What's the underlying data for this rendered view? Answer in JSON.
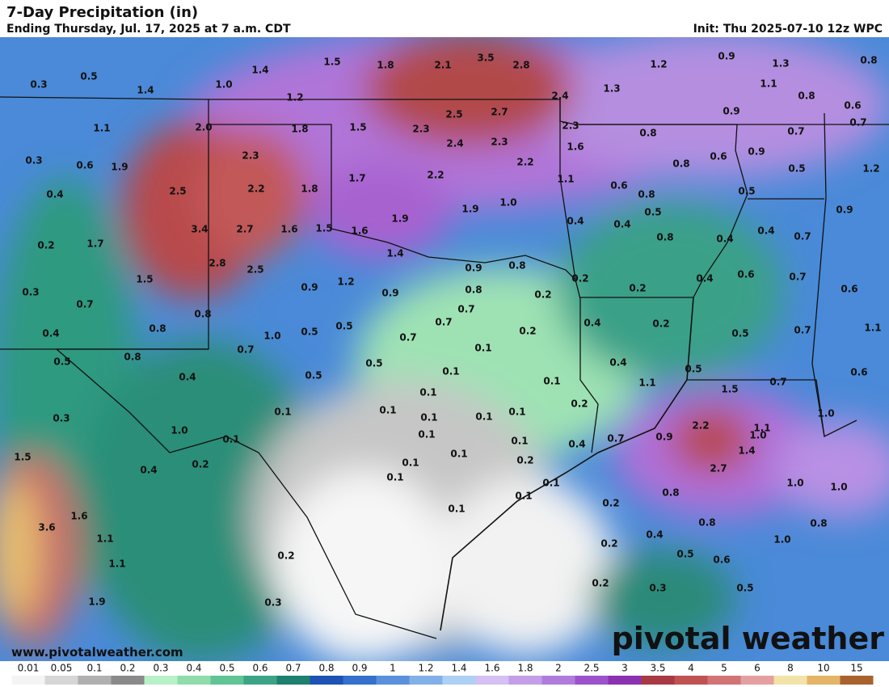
{
  "header": {
    "title": "7-Day Precipitation (in)",
    "subtitle": "Ending Thursday, Jul. 17, 2025 at 7 a.m. CDT",
    "init": "Init: Thu 2025-07-10 12z WPC"
  },
  "map_labels": [
    "0.3",
    "0.5",
    "1.4",
    "1.0",
    "1.4",
    "1.5",
    "1.8",
    "2.1",
    "3.5",
    "2.8",
    "1.2",
    "0.9",
    "1.3",
    "0.8",
    "1.2",
    "2.4",
    "1.3",
    "1.1",
    "0.8",
    "0.6",
    "1.1",
    "2.0",
    "1.8",
    "1.5",
    "2.3",
    "2.5",
    "2.7",
    "2.3",
    "0.8",
    "0.9",
    "0.7",
    "0.7",
    "0.3",
    "0.6",
    "1.9",
    "2.3",
    "2.4",
    "2.3",
    "1.6",
    "0.6",
    "0.8",
    "0.9",
    "0.5",
    "1.2",
    "0.4",
    "2.5",
    "2.2",
    "1.8",
    "1.7",
    "2.2",
    "2.2",
    "1.1",
    "0.6",
    "0.8",
    "0.5",
    "1.0",
    "1.9",
    "1.9",
    "0.9",
    "0.2",
    "1.7",
    "3.4",
    "2.7",
    "1.6",
    "1.5",
    "1.6",
    "0.4",
    "0.4",
    "0.5",
    "0.8",
    "0.4",
    "0.4",
    "0.7",
    "2.8",
    "2.5",
    "1.4",
    "0.9",
    "0.8",
    "1.5",
    "0.9",
    "1.2",
    "0.9",
    "0.8",
    "0.2",
    "0.2",
    "0.2",
    "0.4",
    "0.6",
    "0.7",
    "0.6",
    "0.3",
    "0.7",
    "0.7",
    "0.8",
    "0.8",
    "1.0",
    "0.5",
    "0.5",
    "0.7",
    "0.7",
    "0.4",
    "0.2",
    "0.5",
    "0.7",
    "1.1",
    "0.4",
    "0.7",
    "0.1",
    "0.2",
    "0.8",
    "0.5",
    "0.5",
    "0.4",
    "0.5",
    "0.4",
    "0.5",
    "0.1",
    "0.1",
    "1.1",
    "1.5",
    "0.7",
    "0.6",
    "0.1",
    "0.2",
    "0.3",
    "0.1",
    "0.1",
    "0.1",
    "0.1",
    "0.1",
    "2.2",
    "1.1",
    "1.0",
    "1.0",
    "0.1",
    "0.1",
    "0.1",
    "0.4",
    "0.7",
    "0.9",
    "1.0",
    "1.4",
    "0.1",
    "0.2",
    "1.5",
    "0.2",
    "0.1",
    "0.4",
    "2.7",
    "0.1",
    "0.1",
    "0.1",
    "0.8",
    "1.0",
    "1.0",
    "0.2",
    "0.1",
    "1.6",
    "0.8",
    "0.8",
    "3.6",
    "1.1",
    "0.2",
    "0.4",
    "1.0",
    "1.1",
    "0.2",
    "0.5",
    "0.6",
    "0.2",
    "0.3",
    "0.5",
    "1.9",
    "0.3"
  ],
  "watermark": "www.pivotalweather.com",
  "logo": "pivotal weather",
  "legend": {
    "labels": [
      "0.01",
      "0.05",
      "0.1",
      "0.2",
      "0.3",
      "0.4",
      "0.5",
      "0.6",
      "0.7",
      "0.8",
      "0.9",
      "1",
      "1.2",
      "1.4",
      "1.6",
      "1.8",
      "2",
      "2.5",
      "3",
      "3.5",
      "4",
      "5",
      "6",
      "8",
      "10",
      "15"
    ],
    "colors": [
      "#f4f4f4",
      "#d6d6d6",
      "#b0b0b0",
      "#8a8a8a",
      "#b8f0c8",
      "#90dcaa",
      "#60c494",
      "#3ca484",
      "#1e806e",
      "#1e52b4",
      "#3470cc",
      "#5a90dc",
      "#82b0e8",
      "#aed0f4",
      "#d4c0f2",
      "#c49ee6",
      "#b07cdc",
      "#9c52cc",
      "#8a32b2",
      "#a83a44",
      "#c05252",
      "#d27474",
      "#e4a0a0",
      "#f2e4a8",
      "#e4b468",
      "#a8622e"
    ]
  }
}
